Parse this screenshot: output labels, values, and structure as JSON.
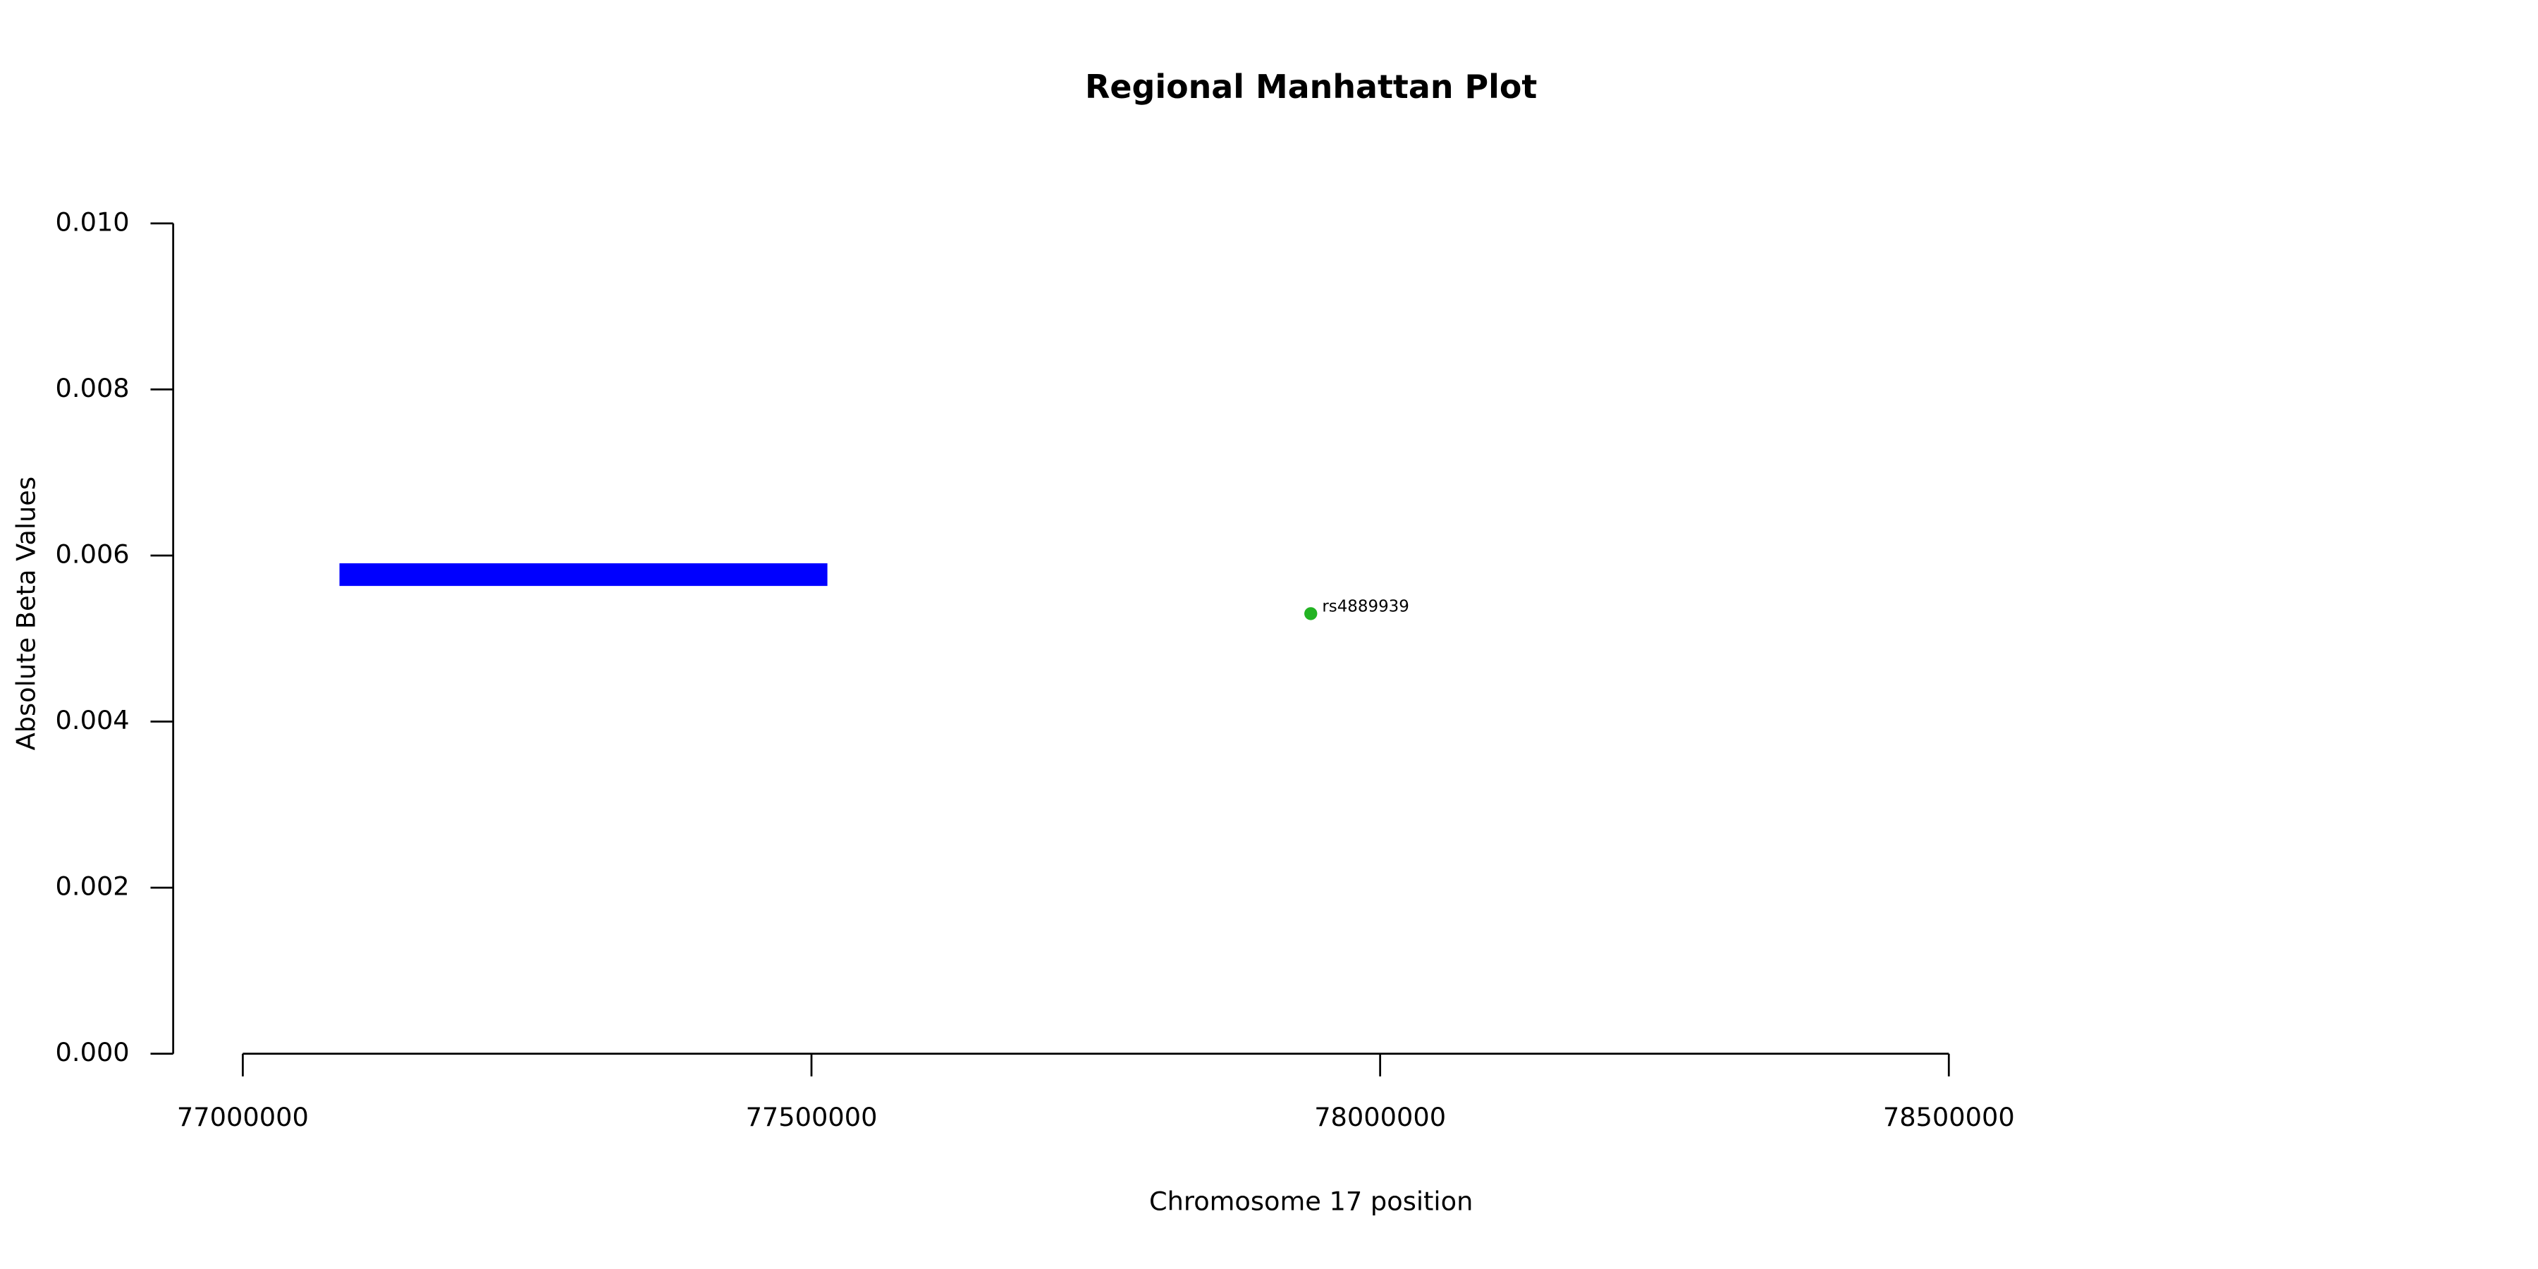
{
  "chart_data": {
    "type": "scatter",
    "title": "Regional Manhattan Plot",
    "x_label": "Chromosome 17 position",
    "y_label": "Absolute Beta Values",
    "xlim": [
      77000000,
      78500000
    ],
    "xticks": [
      77000000,
      77500000,
      78000000,
      78500000
    ],
    "ylim": [
      0,
      0.01
    ],
    "yticks": [
      {
        "value": 0,
        "label": "0.000"
      },
      {
        "value": 0.002,
        "label": "0.002"
      },
      {
        "value": 0.004,
        "label": "0.004"
      },
      {
        "value": 0.006,
        "label": "0.006"
      },
      {
        "value": 0.008,
        "label": "0.008"
      },
      {
        "value": 0.01,
        "label": "0.010"
      }
    ],
    "segments": [
      {
        "x0": 77085000,
        "x1": 77514000,
        "y": 0.00577,
        "color": "#0000ff"
      }
    ],
    "points": [
      {
        "x": 77939000,
        "y": 0.0053,
        "label": "rs4889939",
        "color": "#22b322"
      }
    ]
  }
}
